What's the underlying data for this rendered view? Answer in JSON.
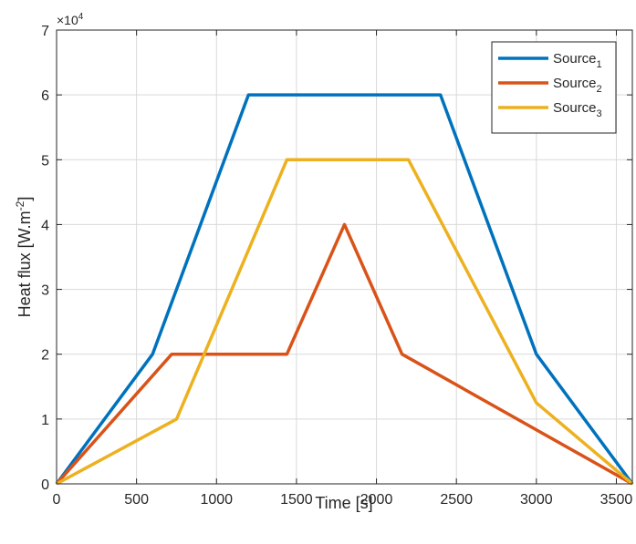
{
  "chart_data": {
    "type": "line",
    "title": "",
    "xlabel": "Time [s]",
    "ylabel_main": "Heat flux [W.m",
    "ylabel_sup": "-2",
    "ylabel_tail": "]",
    "y_exponent_base": "×10",
    "y_exponent_power": "4",
    "xlim": [
      0,
      3600
    ],
    "ylim": [
      0,
      7
    ],
    "xticks": [
      0,
      500,
      1000,
      1500,
      2000,
      2500,
      3000,
      3500
    ],
    "yticks": [
      0,
      1,
      2,
      3,
      4,
      5,
      6,
      7
    ],
    "grid": true,
    "legend_position": "top-right",
    "series": [
      {
        "name_base": "Source",
        "name_sub": "1",
        "color": "#0072BD",
        "x": [
          0,
          600,
          1200,
          2400,
          3000,
          3600
        ],
        "y": [
          0,
          2,
          6,
          6,
          2,
          0
        ]
      },
      {
        "name_base": "Source",
        "name_sub": "2",
        "color": "#D95319",
        "x": [
          0,
          720,
          1440,
          1800,
          2160,
          3600
        ],
        "y": [
          0,
          2,
          2,
          4,
          2,
          0
        ]
      },
      {
        "name_base": "Source",
        "name_sub": "3",
        "color": "#EDB120",
        "x": [
          0,
          750,
          1440,
          2200,
          3000,
          3600
        ],
        "y": [
          0,
          1,
          5,
          5,
          1.25,
          0
        ]
      }
    ]
  }
}
